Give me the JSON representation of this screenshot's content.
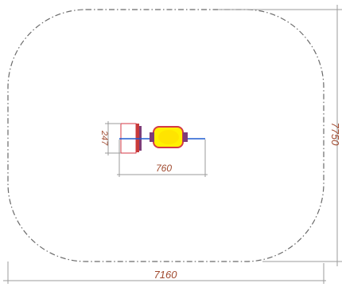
{
  "drawing": {
    "overall_width_label": "7160",
    "overall_height_label": "7750",
    "equipment_width_label": "760",
    "equipment_height_label": "247"
  },
  "colors": {
    "boundary_line": "#6a6a6a",
    "dimension_line": "#9b9b9b",
    "text": "#a04a2f",
    "frame_red": "#d43a46",
    "yellow_fill": "#fff100",
    "blue_line": "#1f5bd1",
    "post_red": "#c83a3a",
    "post_purple": "#7e3c78"
  }
}
